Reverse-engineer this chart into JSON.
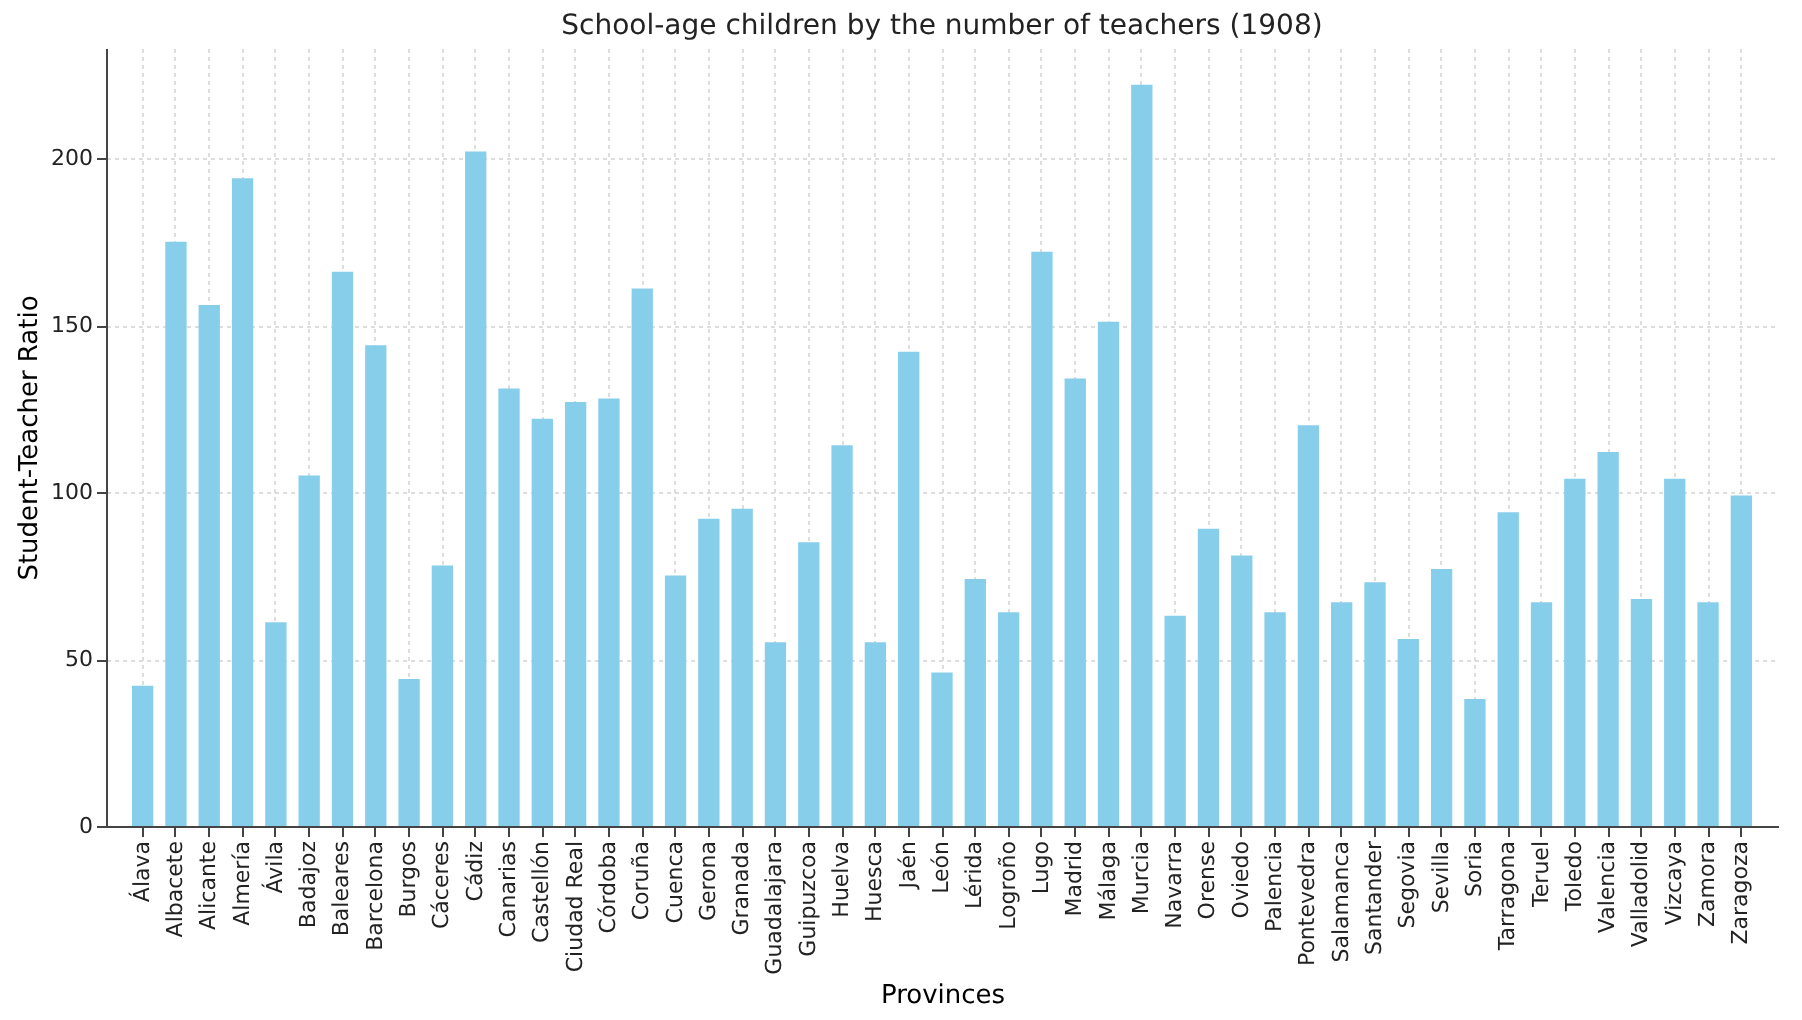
{
  "chart_data": {
    "type": "bar",
    "title": "School-age children by the number of teachers (1908)",
    "xlabel": "Provinces",
    "ylabel": "Student-Teacher Ratio",
    "categories": [
      "Álava",
      "Albacete",
      "Alicante",
      "Almería",
      "Ávila",
      "Badajoz",
      "Baleares",
      "Barcelona",
      "Burgos",
      "Cáceres",
      "Cádiz",
      "Canarias",
      "Castellón",
      "Ciudad Real",
      "Córdoba",
      "Coruña",
      "Cuenca",
      "Gerona",
      "Granada",
      "Guadalajara",
      "Guipuzcoa",
      "Huelva",
      "Huesca",
      "Jaén",
      "León",
      "Lérida",
      "Logroño",
      "Lugo",
      "Madrid",
      "Málaga",
      "Murcia",
      "Navarra",
      "Orense",
      "Oviedo",
      "Palencia",
      "Pontevedra",
      "Salamanca",
      "Santander",
      "Segovia",
      "Sevilla",
      "Soria",
      "Tarragona",
      "Teruel",
      "Toledo",
      "Valencia",
      "Valladolid",
      "Vizcaya",
      "Zamora",
      "Zaragoza"
    ],
    "values": [
      42,
      175,
      156,
      194,
      61,
      105,
      166,
      144,
      44,
      78,
      202,
      131,
      122,
      127,
      128,
      161,
      75,
      92,
      95,
      55,
      85,
      114,
      55,
      142,
      46,
      74,
      64,
      172,
      134,
      151,
      222,
      63,
      89,
      81,
      64,
      120,
      67,
      73,
      56,
      77,
      38,
      94,
      67,
      104,
      112,
      68,
      104,
      67,
      99
    ],
    "color": "#87ceeb",
    "ylim": [
      0,
      233
    ],
    "yticks": [
      0,
      50,
      100,
      150,
      200
    ],
    "grid": true
  }
}
